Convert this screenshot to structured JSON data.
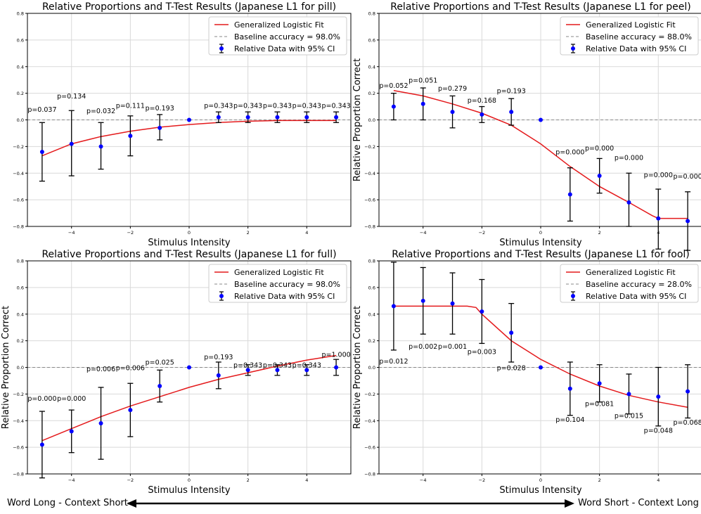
{
  "chart_data": [
    {
      "type": "scatter",
      "title": "Relative Proportions and T-Test Results (Japanese L1 for pill)",
      "xlabel": "Stimulus Intensity",
      "ylabel": "Relative Proportion Correct",
      "xlim": [
        -5.5,
        5.5
      ],
      "ylim": [
        -0.8,
        0.8
      ],
      "xticks": [
        -4,
        -2,
        0,
        2,
        4
      ],
      "yticks": [
        -0.8,
        -0.6,
        -0.4,
        -0.2,
        0.0,
        0.2,
        0.4,
        0.6,
        0.8
      ],
      "grid": true,
      "legend_position": "top-right",
      "legend": [
        "Generalized Logistic Fit",
        "Baseline accuracy = 98.0%",
        "Relative Data with 95% CI"
      ],
      "baseline": 0.0,
      "show_ylabel": false,
      "x": [
        -5,
        -4,
        -3,
        -2,
        -1,
        0,
        1,
        2,
        3,
        4,
        5
      ],
      "y": [
        -0.24,
        -0.18,
        -0.2,
        -0.12,
        -0.06,
        0.0,
        0.02,
        0.02,
        0.02,
        0.02,
        0.02
      ],
      "ci_low": [
        -0.46,
        -0.42,
        -0.37,
        -0.27,
        -0.15,
        0.0,
        -0.02,
        -0.02,
        -0.02,
        -0.02,
        -0.02
      ],
      "ci_high": [
        -0.02,
        0.07,
        -0.02,
        0.03,
        0.04,
        0.0,
        0.06,
        0.06,
        0.06,
        0.06,
        0.06
      ],
      "p_labels": [
        "p=0.037",
        "p=0.134",
        "p=0.032",
        "p=0.111",
        "p=0.193",
        "",
        "p=0.343",
        "p=0.343",
        "p=0.343",
        "p=0.343",
        "p=0.343"
      ],
      "p_label_y": [
        0.06,
        0.16,
        0.05,
        0.09,
        0.07,
        null,
        0.09,
        0.09,
        0.09,
        0.09,
        0.09
      ],
      "fit_x": [
        -5,
        -4,
        -3,
        -2,
        -1,
        0,
        1,
        2,
        3,
        4,
        5
      ],
      "fit_y": [
        -0.27,
        -0.18,
        -0.125,
        -0.085,
        -0.055,
        -0.035,
        -0.02,
        -0.01,
        -0.005,
        -0.005,
        -0.005
      ]
    },
    {
      "type": "scatter",
      "title": "Relative Proportions and T-Test Results (Japanese L1 for peel)",
      "xlabel": "Stimulus Intensity",
      "ylabel": "Relative Proportion Correct",
      "xlim": [
        -5.5,
        5.5
      ],
      "ylim": [
        -0.8,
        0.8
      ],
      "xticks": [
        -4,
        -2,
        0,
        2,
        4
      ],
      "yticks": [
        -0.8,
        -0.6,
        -0.4,
        -0.2,
        0.0,
        0.2,
        0.4,
        0.6,
        0.8
      ],
      "grid": true,
      "legend_position": "top-right",
      "legend": [
        "Generalized Logistic Fit",
        "Baseline accuracy = 88.0%",
        "Relative Data with 95% CI"
      ],
      "baseline": 0.0,
      "show_ylabel": true,
      "x": [
        -5,
        -4,
        -3,
        -2,
        -1,
        0,
        1,
        2,
        3,
        4,
        5
      ],
      "y": [
        0.1,
        0.12,
        0.06,
        0.04,
        0.06,
        0.0,
        -0.56,
        -0.42,
        -0.62,
        -0.74,
        -0.76
      ],
      "ci_low": [
        0.0,
        0.0,
        -0.06,
        -0.02,
        -0.04,
        0.0,
        -0.76,
        -0.55,
        -0.8,
        -0.97,
        -0.98
      ],
      "ci_high": [
        0.2,
        0.24,
        0.18,
        0.1,
        0.16,
        0.0,
        -0.36,
        -0.29,
        -0.4,
        -0.52,
        -0.54
      ],
      "p_labels": [
        "p=0.052",
        "p=0.051",
        "p=0.279",
        "p=0.168",
        "p=0.193",
        "",
        "p=0.000",
        "p=0.000",
        "p=0.000",
        "p=0.000",
        "p=0.000"
      ],
      "p_label_y": [
        0.24,
        0.28,
        0.22,
        0.13,
        0.2,
        null,
        -0.26,
        -0.23,
        -0.3,
        -0.43,
        -0.44
      ],
      "fit_x": [
        -5,
        -4,
        -3,
        -2,
        -1,
        0,
        1,
        2,
        3,
        3.8,
        4,
        5
      ],
      "fit_y": [
        0.22,
        0.18,
        0.12,
        0.05,
        -0.04,
        -0.18,
        -0.35,
        -0.5,
        -0.62,
        -0.72,
        -0.74,
        -0.74
      ]
    },
    {
      "type": "scatter",
      "title": "Relative Proportions and T-Test Results (Japanese L1 for full)",
      "xlabel": "Stimulus Intensity",
      "ylabel": "Relative Proportion Correct",
      "xlim": [
        -5.5,
        5.5
      ],
      "ylim": [
        -0.8,
        0.8
      ],
      "xticks": [
        -4,
        -2,
        0,
        2,
        4
      ],
      "yticks": [
        -0.8,
        -0.6,
        -0.4,
        -0.2,
        0.0,
        0.2,
        0.4,
        0.6,
        0.8
      ],
      "grid": true,
      "legend_position": "top-right",
      "legend": [
        "Generalized Logistic Fit",
        "Baseline accuracy = 98.0%",
        "Relative Data with 95% CI"
      ],
      "baseline": 0.0,
      "show_ylabel": true,
      "x": [
        -5,
        -4,
        -3,
        -2,
        -1,
        0,
        1,
        2,
        3,
        4,
        5
      ],
      "y": [
        -0.58,
        -0.48,
        -0.42,
        -0.32,
        -0.14,
        0.0,
        -0.06,
        -0.02,
        -0.02,
        -0.02,
        0.0
      ],
      "ci_low": [
        -0.83,
        -0.64,
        -0.69,
        -0.52,
        -0.26,
        0.0,
        -0.16,
        -0.06,
        -0.06,
        -0.06,
        -0.06
      ],
      "ci_high": [
        -0.33,
        -0.32,
        -0.15,
        -0.12,
        -0.02,
        0.0,
        0.04,
        0.02,
        0.02,
        0.02,
        0.06
      ],
      "p_labels": [
        "p=0.000",
        "p=0.000",
        "p=0.006",
        "p=0.006",
        "p=0.025",
        "",
        "p=0.193",
        "p=0.343",
        "p=0.343",
        "p=0.343",
        "p=1.000"
      ],
      "p_label_y": [
        -0.25,
        -0.25,
        -0.03,
        -0.02,
        0.02,
        null,
        0.06,
        0.0,
        0.0,
        0.0,
        0.08
      ],
      "fit_x": [
        -5,
        -4,
        -3,
        -2,
        -1,
        0,
        1,
        2,
        3,
        4,
        5
      ],
      "fit_y": [
        -0.55,
        -0.46,
        -0.37,
        -0.29,
        -0.22,
        -0.15,
        -0.09,
        -0.04,
        0.01,
        0.055,
        0.09
      ]
    },
    {
      "type": "scatter",
      "title": "Relative Proportions and T-Test Results (Japanese L1 for fool)",
      "xlabel": "Stimulus Intensity",
      "ylabel": "Relative Proportion Correct",
      "xlim": [
        -5.5,
        5.5
      ],
      "ylim": [
        -0.8,
        0.8
      ],
      "xticks": [
        -4,
        -2,
        0,
        2,
        4
      ],
      "yticks": [
        -0.8,
        -0.6,
        -0.4,
        -0.2,
        0.0,
        0.2,
        0.4,
        0.6,
        0.8
      ],
      "grid": true,
      "legend_position": "top-right",
      "legend": [
        "Generalized Logistic Fit",
        "Baseline accuracy = 28.0%",
        "Relative Data with 95% CI"
      ],
      "baseline": 0.0,
      "show_ylabel": true,
      "x": [
        -5,
        -4,
        -3,
        -2,
        -1,
        0,
        1,
        2,
        3,
        4,
        5
      ],
      "y": [
        0.46,
        0.5,
        0.48,
        0.42,
        0.26,
        0.0,
        -0.16,
        -0.12,
        -0.2,
        -0.22,
        -0.18
      ],
      "ci_low": [
        0.13,
        0.25,
        0.25,
        0.18,
        0.04,
        0.0,
        -0.36,
        -0.26,
        -0.35,
        -0.44,
        -0.38
      ],
      "ci_high": [
        0.79,
        0.75,
        0.71,
        0.66,
        0.48,
        0.0,
        0.04,
        0.02,
        -0.05,
        0.0,
        0.02
      ],
      "p_labels": [
        "p=0.012",
        "p=0.002",
        "p=0.001",
        "p=0.003",
        "p=0.028",
        "",
        "p=0.104",
        "p=0.081",
        "p=0.015",
        "p=0.048",
        "p=0.068"
      ],
      "p_label_y": [
        0.03,
        0.14,
        0.14,
        0.1,
        -0.02,
        null,
        -0.41,
        -0.29,
        -0.38,
        -0.49,
        -0.43
      ],
      "fit_x": [
        -5,
        -4,
        -3,
        -2.5,
        -2.2,
        -2,
        -1,
        0,
        1,
        2,
        3,
        4,
        5
      ],
      "fit_y": [
        0.46,
        0.46,
        0.46,
        0.46,
        0.45,
        0.4,
        0.2,
        0.06,
        -0.05,
        -0.14,
        -0.21,
        -0.26,
        -0.3
      ]
    }
  ],
  "footer": {
    "left_label": "Word Long - Context Short",
    "right_label": "Word Short - Context Long"
  }
}
